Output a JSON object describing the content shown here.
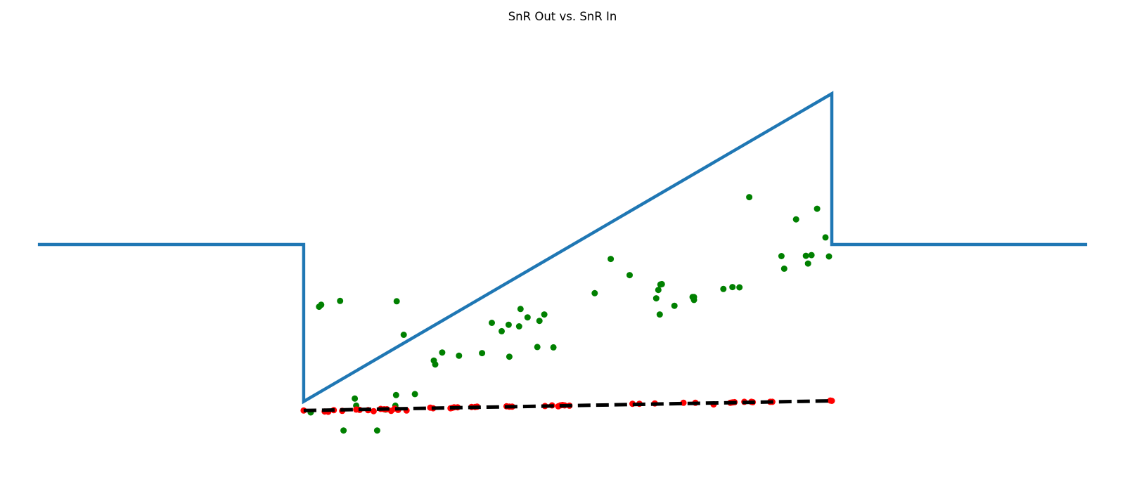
{
  "chart_data": {
    "type": "scatter",
    "title": "SnR Out vs. SnR In",
    "xlabel": "",
    "ylabel": "",
    "axes_visible": false,
    "grid": false,
    "legend": "none",
    "xlim": [
      -0.26,
      1.26
    ],
    "ylim": [
      -0.18,
      1.18
    ],
    "colors": {
      "line": "#1f77b4",
      "green_points": "#008000",
      "red_points": "#ff0000",
      "fit_line": "#000000"
    },
    "series": [
      {
        "kind": "line",
        "style": "solid",
        "color": "#1f77b4",
        "x": [
          -0.25,
          0.13,
          0.13,
          0.885,
          0.885,
          1.25
        ],
        "y": [
          0.5,
          0.5,
          0.013,
          0.968,
          0.5,
          0.5
        ]
      },
      {
        "kind": "scatter",
        "color": "#008000",
        "x": [
          0.152,
          0.155,
          0.182,
          0.263,
          0.273,
          0.262,
          0.261,
          0.289,
          0.316,
          0.328,
          0.318,
          0.385,
          0.352,
          0.424,
          0.413,
          0.399,
          0.438,
          0.423,
          0.44,
          0.45,
          0.467,
          0.464,
          0.487,
          0.474,
          0.546,
          0.596,
          0.569,
          0.64,
          0.634,
          0.642,
          0.637,
          0.639,
          0.66,
          0.686,
          0.688,
          0.688,
          0.73,
          0.753,
          0.743,
          0.813,
          0.817,
          0.851,
          0.848,
          0.856,
          0.876,
          0.881,
          0.767,
          0.834,
          0.864,
          0.14,
          0.235,
          0.187,
          0.247,
          0.205,
          0.203
        ],
        "y": [
          0.307,
          0.313,
          0.325,
          0.324,
          0.22,
          0.033,
          0.0,
          0.036,
          0.14,
          0.165,
          0.128,
          0.163,
          0.155,
          0.152,
          0.231,
          0.257,
          0.246,
          0.251,
          0.3,
          0.274,
          0.263,
          0.182,
          0.181,
          0.283,
          0.349,
          0.405,
          0.455,
          0.376,
          0.333,
          0.377,
          0.359,
          0.283,
          0.31,
          0.337,
          0.337,
          0.328,
          0.362,
          0.367,
          0.368,
          0.464,
          0.425,
          0.441,
          0.465,
          0.467,
          0.522,
          0.463,
          0.647,
          0.578,
          0.611,
          -0.021,
          -0.077,
          -0.077,
          -0.012,
          0.0,
          0.022
        ]
      },
      {
        "kind": "scatter",
        "color": "#ff0000",
        "x": [
          0.13,
          0.16,
          0.165,
          0.173,
          0.185,
          0.205,
          0.21,
          0.222,
          0.23,
          0.24,
          0.245,
          0.249,
          0.255,
          0.26,
          0.265,
          0.277,
          0.311,
          0.315,
          0.34,
          0.342,
          0.345,
          0.35,
          0.37,
          0.375,
          0.378,
          0.42,
          0.424,
          0.428,
          0.475,
          0.485,
          0.494,
          0.497,
          0.5,
          0.503,
          0.51,
          0.6,
          0.61,
          0.632,
          0.673,
          0.69,
          0.716,
          0.74,
          0.743,
          0.746,
          0.76,
          0.77,
          0.772,
          0.797,
          0.8,
          0.885,
          0.883
        ],
        "y": [
          -0.015,
          -0.018,
          -0.019,
          -0.014,
          -0.016,
          -0.012,
          -0.013,
          -0.014,
          -0.017,
          -0.01,
          -0.011,
          -0.011,
          -0.016,
          -0.009,
          -0.013,
          -0.015,
          -0.006,
          -0.008,
          -0.008,
          -0.007,
          -0.005,
          -0.005,
          -0.004,
          -0.004,
          -0.003,
          -0.002,
          -0.003,
          -0.003,
          -0.001,
          0.001,
          -0.002,
          0.001,
          0.002,
          0.001,
          0.0,
          0.006,
          0.006,
          0.007,
          0.009,
          0.009,
          0.004,
          0.009,
          0.01,
          0.011,
          0.012,
          0.012,
          0.011,
          0.012,
          0.012,
          0.015,
          0.016
        ]
      },
      {
        "kind": "line",
        "style": "dashed",
        "color": "#000000",
        "x": [
          0.13,
          0.885
        ],
        "y": [
          -0.015,
          0.015
        ]
      }
    ]
  }
}
